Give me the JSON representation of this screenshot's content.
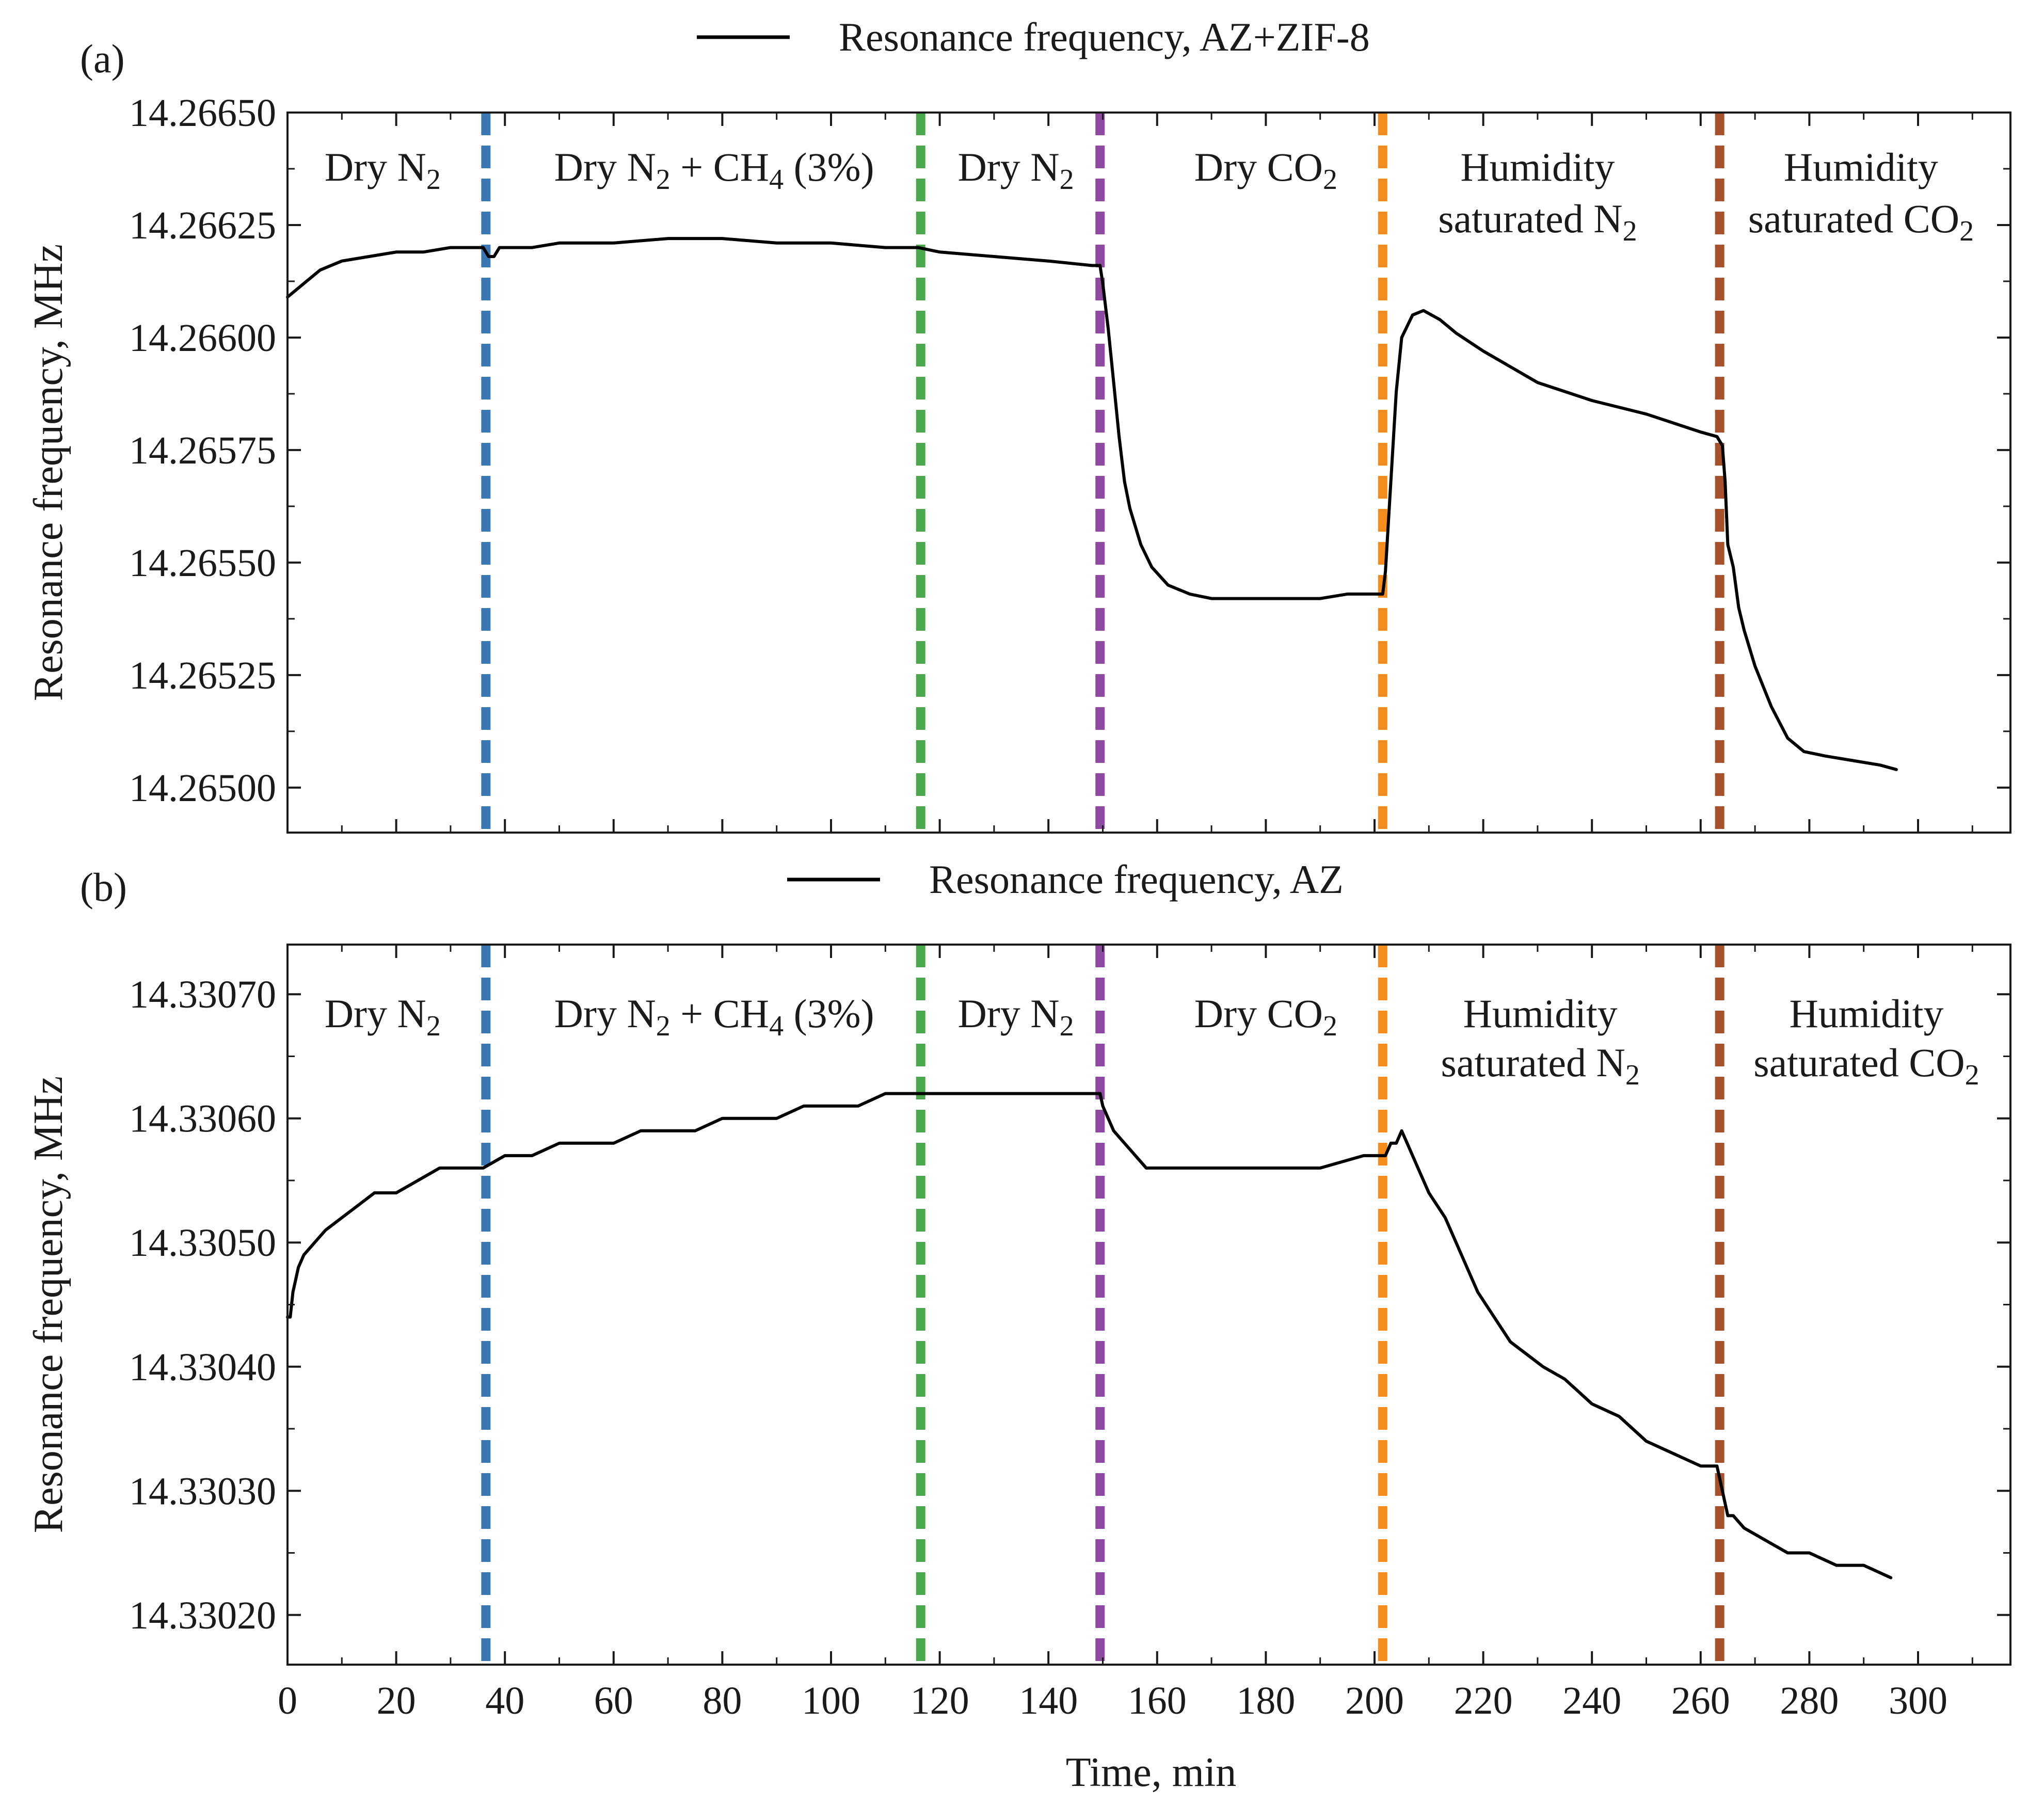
{
  "colors": {
    "axis": "#1a1a1a",
    "data_line": "#000000",
    "N2_switch": "#3a78b4",
    "CH4_switch": "#4aa84a",
    "N2_return": "#8e4a9e",
    "CO2_switch": "#f48c1e",
    "CO2_humid_switch": "#a6512e"
  },
  "chart_data": [
    {
      "type": "line",
      "panel_label": "(a)",
      "legend": {
        "label": "Resonance frequency, AZ+ZIF-8",
        "position": "top-center"
      },
      "xlabel": "Time, min",
      "ylabel": "Resonance frequency, MHz",
      "xlim": [
        0,
        317
      ],
      "ylim": [
        14.2649,
        14.2665
      ],
      "x_ticks": [
        0,
        20,
        40,
        60,
        80,
        100,
        120,
        140,
        160,
        180,
        200,
        220,
        240,
        260,
        280,
        300
      ],
      "y_ticks": [
        "14.26500",
        "14.26525",
        "14.26550",
        "14.26575",
        "14.26600",
        "14.26625",
        "14.26650"
      ],
      "vertical_lines": [
        {
          "x": 36.5,
          "color": "#3a78b4"
        },
        {
          "x": 116.5,
          "color": "#4aa84a"
        },
        {
          "x": 149.5,
          "color": "#8e4a9e"
        },
        {
          "x": 201.5,
          "color": "#f48c1e"
        },
        {
          "x": 263.5,
          "color": "#a6512e"
        }
      ],
      "region_labels": [
        {
          "x": 17.5,
          "lines": [
            [
              [
                "Dry N",
                "normal"
              ],
              [
                "2",
                "sub"
              ]
            ]
          ]
        },
        {
          "x": 78.5,
          "lines": [
            [
              [
                "Dry N",
                "normal"
              ],
              [
                "2",
                "sub"
              ],
              [
                " + CH",
                "normal"
              ],
              [
                "4",
                "sub"
              ],
              [
                " (3%)",
                "normal"
              ]
            ]
          ]
        },
        {
          "x": 134,
          "lines": [
            [
              [
                "Dry N",
                "normal"
              ],
              [
                "2",
                "sub"
              ]
            ]
          ]
        },
        {
          "x": 180,
          "lines": [
            [
              [
                "Dry CO",
                "normal"
              ],
              [
                "2",
                "sub"
              ]
            ]
          ]
        },
        {
          "x": 230,
          "lines": [
            [
              [
                "Humidity",
                "normal"
              ]
            ],
            [
              [
                "saturated N",
                "normal"
              ],
              [
                "2",
                "sub"
              ]
            ]
          ]
        },
        {
          "x": 289.5,
          "lines": [
            [
              [
                "Humidity",
                "normal"
              ]
            ],
            [
              [
                "saturated CO",
                "normal"
              ],
              [
                "2",
                "sub"
              ]
            ]
          ]
        }
      ],
      "series": [
        {
          "name": "Resonance frequency, AZ+ZIF-8",
          "x": [
            0,
            1,
            3,
            6,
            10,
            15,
            20,
            25,
            30,
            34,
            36,
            37,
            38,
            39,
            40,
            45,
            50,
            60,
            70,
            80,
            90,
            100,
            110,
            116,
            120,
            130,
            140,
            148,
            149.5,
            150,
            151,
            152,
            153,
            154,
            155,
            157,
            159,
            162,
            166,
            170,
            180,
            190,
            195,
            200,
            201.5,
            202,
            203,
            204,
            205,
            207,
            209,
            212,
            215,
            220,
            230,
            240,
            250,
            260,
            263,
            264,
            264.5,
            265,
            266,
            267,
            268,
            270,
            273,
            276,
            279,
            283,
            288,
            293,
            296
          ],
          "y": [
            14.26609,
            14.2661,
            14.26612,
            14.26615,
            14.26617,
            14.26618,
            14.26619,
            14.26619,
            14.2662,
            14.2662,
            14.2662,
            14.26618,
            14.26618,
            14.2662,
            14.2662,
            14.2662,
            14.26621,
            14.26621,
            14.26622,
            14.26622,
            14.26621,
            14.26621,
            14.2662,
            14.2662,
            14.26619,
            14.26618,
            14.26617,
            14.26616,
            14.26616,
            14.26612,
            14.26602,
            14.2659,
            14.26578,
            14.26568,
            14.26562,
            14.26554,
            14.26549,
            14.26545,
            14.26543,
            14.26542,
            14.26542,
            14.26542,
            14.26543,
            14.26543,
            14.26543,
            14.26548,
            14.26568,
            14.26588,
            14.266,
            14.26605,
            14.26606,
            14.26604,
            14.26601,
            14.26597,
            14.2659,
            14.26586,
            14.26583,
            14.26579,
            14.26578,
            14.26576,
            14.26568,
            14.26554,
            14.26549,
            14.2654,
            14.26535,
            14.26527,
            14.26518,
            14.26511,
            14.26508,
            14.26507,
            14.26506,
            14.26505,
            14.26504
          ]
        }
      ]
    },
    {
      "type": "line",
      "panel_label": "(b)",
      "legend": {
        "label": "Resonance frequency, AZ",
        "position": "top-center"
      },
      "xlabel": "Time, min",
      "ylabel": "Resonance frequency, MHz",
      "xlim": [
        0,
        317
      ],
      "ylim": [
        14.33016,
        14.33074
      ],
      "x_ticks": [
        0,
        20,
        40,
        60,
        80,
        100,
        120,
        140,
        160,
        180,
        200,
        220,
        240,
        260,
        280,
        300
      ],
      "y_ticks": [
        "14.33020",
        "14.33030",
        "14.33040",
        "14.33050",
        "14.33060",
        "14.33070"
      ],
      "vertical_lines": [
        {
          "x": 36.5,
          "color": "#3a78b4"
        },
        {
          "x": 116.5,
          "color": "#4aa84a"
        },
        {
          "x": 149.5,
          "color": "#8e4a9e"
        },
        {
          "x": 201.5,
          "color": "#f48c1e"
        },
        {
          "x": 263.5,
          "color": "#a6512e"
        }
      ],
      "region_labels": [
        {
          "x": 17.5,
          "lines": [
            [
              [
                "Dry N",
                "normal"
              ],
              [
                "2",
                "sub"
              ]
            ]
          ]
        },
        {
          "x": 78.5,
          "lines": [
            [
              [
                "Dry N",
                "normal"
              ],
              [
                "2",
                "sub"
              ],
              [
                " + CH",
                "normal"
              ],
              [
                "4",
                "sub"
              ],
              [
                " (3%)",
                "normal"
              ]
            ]
          ]
        },
        {
          "x": 134,
          "lines": [
            [
              [
                "Dry N",
                "normal"
              ],
              [
                "2",
                "sub"
              ]
            ]
          ]
        },
        {
          "x": 180,
          "lines": [
            [
              [
                "Dry CO",
                "normal"
              ],
              [
                "2",
                "sub"
              ]
            ]
          ]
        },
        {
          "x": 230.5,
          "lines": [
            [
              [
                "Humidity",
                "normal"
              ]
            ],
            [
              [
                "saturated N",
                "normal"
              ],
              [
                "2",
                "sub"
              ]
            ]
          ]
        },
        {
          "x": 290.5,
          "lines": [
            [
              [
                "Humidity",
                "normal"
              ]
            ],
            [
              [
                "saturated CO",
                "normal"
              ],
              [
                "2",
                "sub"
              ]
            ]
          ]
        }
      ],
      "series": [
        {
          "name": "Resonance frequency, AZ",
          "x": [
            0,
            0.5,
            1,
            2,
            3,
            5,
            7,
            10,
            13,
            16,
            20,
            24,
            28,
            34,
            36,
            40,
            45,
            50,
            55,
            60,
            65,
            70,
            75,
            80,
            85,
            90,
            95,
            100,
            105,
            110,
            115,
            120,
            130,
            140,
            148,
            149.5,
            150,
            152,
            154,
            156,
            158,
            160,
            170,
            180,
            190,
            198,
            201,
            202,
            203,
            204,
            205,
            206,
            208,
            210,
            213,
            216,
            219,
            222,
            225,
            228,
            231,
            235,
            240,
            245,
            250,
            255,
            260,
            263,
            264,
            265,
            266,
            268,
            272,
            276,
            280,
            285,
            290,
            295
          ],
          "y": [
            14.33044,
            14.33044,
            14.33046,
            14.33048,
            14.33049,
            14.3305,
            14.33051,
            14.33052,
            14.33053,
            14.33054,
            14.33054,
            14.33055,
            14.33056,
            14.33056,
            14.33056,
            14.33057,
            14.33057,
            14.33058,
            14.33058,
            14.33058,
            14.33059,
            14.33059,
            14.33059,
            14.3306,
            14.3306,
            14.3306,
            14.33061,
            14.33061,
            14.33061,
            14.33062,
            14.33062,
            14.33062,
            14.33062,
            14.33062,
            14.33062,
            14.33062,
            14.33061,
            14.33059,
            14.33058,
            14.33057,
            14.33056,
            14.33056,
            14.33056,
            14.33056,
            14.33056,
            14.33057,
            14.33057,
            14.33057,
            14.33058,
            14.33058,
            14.33059,
            14.33058,
            14.33056,
            14.33054,
            14.33052,
            14.33049,
            14.33046,
            14.33044,
            14.33042,
            14.33041,
            14.3304,
            14.33039,
            14.33037,
            14.33036,
            14.33034,
            14.33033,
            14.33032,
            14.33032,
            14.3303,
            14.33028,
            14.33028,
            14.33027,
            14.33026,
            14.33025,
            14.33025,
            14.33024,
            14.33024,
            14.33023
          ]
        }
      ]
    }
  ]
}
